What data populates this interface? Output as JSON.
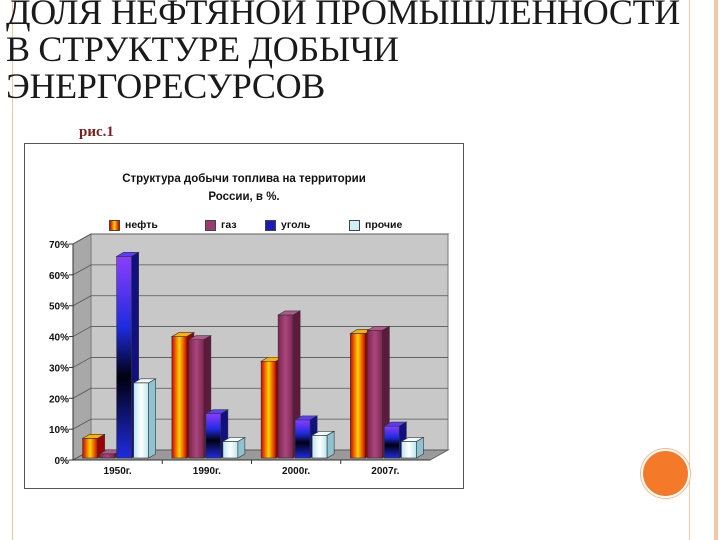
{
  "slide": {
    "title": "ДОЛЯ НЕФТЯНОЙ ПРОМЫШЛЕННОСТИ\nВ СТРУКТУРЕ ДОБЫЧИ\nЭНЕРГОРЕСУРСОВ",
    "figure_label": "рис.1"
  },
  "chart_data": {
    "type": "bar",
    "title": "Структура добычи топлива на территории\nРоссии, в %.",
    "categories": [
      "1950г.",
      "1990г.",
      "2000г.",
      "2007г."
    ],
    "series": [
      {
        "name": "нефть",
        "values": [
          7,
          40,
          32,
          41
        ],
        "color": "#e8520a"
      },
      {
        "name": "газ",
        "values": [
          2,
          39,
          47,
          42
        ],
        "color": "#9b3a6e"
      },
      {
        "name": "уголь",
        "values": [
          66,
          15,
          13,
          11
        ],
        "color": "#1b1bb5"
      },
      {
        "name": "прочие",
        "values": [
          25,
          6,
          8,
          6
        ],
        "color": "#cfeef5"
      }
    ],
    "ylim": [
      0,
      70
    ],
    "yticks": [
      "0%",
      "10%",
      "20%",
      "30%",
      "40%",
      "50%",
      "60%",
      "70%"
    ],
    "grid": true,
    "legend": "top"
  }
}
